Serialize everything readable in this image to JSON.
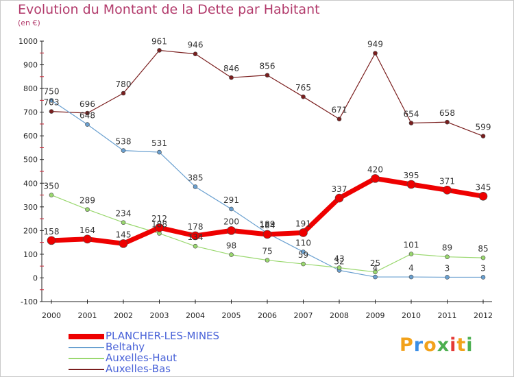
{
  "header": {
    "title": "Evolution du Montant de la Dette par Habitant",
    "unit": "(en €)"
  },
  "logo": {
    "letters": [
      {
        "ch": "P",
        "color": "#f2a21b"
      },
      {
        "ch": "r",
        "color": "#3a8ee6"
      },
      {
        "ch": "o",
        "color": "#f2a21b"
      },
      {
        "ch": "x",
        "color": "#4caf50"
      },
      {
        "ch": "i",
        "color": "#e53935"
      },
      {
        "ch": "t",
        "color": "#f2a21b"
      },
      {
        "ch": "i",
        "color": "#4caf50"
      }
    ]
  },
  "chart_data": {
    "type": "line",
    "x": [
      2000,
      2001,
      2002,
      2003,
      2004,
      2005,
      2006,
      2007,
      2008,
      2009,
      2010,
      2011,
      2012
    ],
    "ylim": [
      -100,
      1000
    ],
    "yticks": [
      -100,
      0,
      100,
      200,
      300,
      400,
      500,
      600,
      700,
      800,
      900,
      1000
    ],
    "grid": false,
    "legend_position": "bottom-left",
    "series": [
      {
        "name": "Auxelles-Bas",
        "color": "#7a1e1e",
        "values": [
          703,
          696,
          780,
          961,
          946,
          846,
          856,
          765,
          671,
          949,
          654,
          658,
          599
        ]
      },
      {
        "name": "Beltahy",
        "color": "#6aa0d0",
        "values": [
          750,
          648,
          538,
          531,
          385,
          291,
          189,
          110,
          32,
          4,
          4,
          3,
          3
        ]
      },
      {
        "name": "Auxelles-Haut",
        "color": "#9ad86f",
        "values": [
          350,
          289,
          234,
          188,
          134,
          98,
          75,
          59,
          43,
          25,
          101,
          89,
          85
        ]
      },
      {
        "name": "PLANCHER-LES-MINES",
        "color": "#ee0000",
        "values": [
          158,
          164,
          145,
          212,
          178,
          200,
          184,
          191,
          337,
          420,
          395,
          371,
          345
        ]
      }
    ]
  }
}
